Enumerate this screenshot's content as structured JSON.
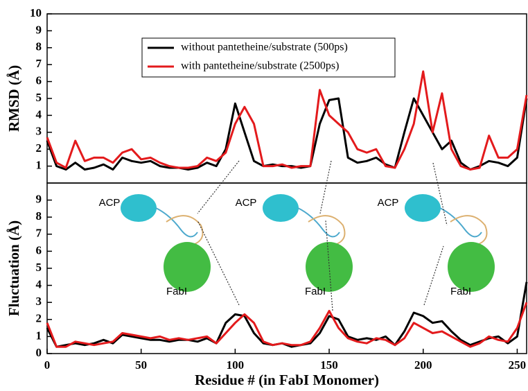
{
  "chart_data": [
    {
      "type": "line",
      "ylabel": "RMSD  (Å)",
      "legend": "upper center",
      "xlim": [
        0,
        255
      ],
      "ylim": [
        0,
        10
      ],
      "yticks": [
        1,
        2,
        3,
        4,
        5,
        6,
        7,
        8,
        9,
        10
      ],
      "x": [
        0,
        5,
        10,
        15,
        20,
        25,
        30,
        35,
        40,
        45,
        50,
        55,
        60,
        65,
        70,
        75,
        80,
        85,
        90,
        95,
        100,
        105,
        110,
        115,
        120,
        125,
        130,
        135,
        140,
        145,
        150,
        155,
        160,
        165,
        170,
        175,
        180,
        185,
        190,
        195,
        200,
        205,
        210,
        215,
        220,
        225,
        230,
        235,
        240,
        245,
        250,
        255
      ],
      "series": [
        {
          "name": "without pantetheine/substrate (500ps)",
          "color": "#000000",
          "values": [
            2.5,
            1.0,
            0.8,
            1.2,
            0.8,
            0.9,
            1.1,
            0.8,
            1.5,
            1.3,
            1.2,
            1.3,
            1.0,
            0.9,
            0.9,
            0.8,
            0.9,
            1.2,
            1.0,
            2.0,
            4.7,
            3.0,
            1.3,
            1.0,
            1.1,
            1.0,
            1.0,
            0.9,
            1.0,
            3.5,
            4.9,
            5.0,
            1.5,
            1.2,
            1.3,
            1.5,
            1.1,
            0.9,
            3.0,
            5.0,
            4.0,
            3.0,
            2.0,
            2.5,
            1.2,
            0.8,
            1.0,
            1.3,
            1.2,
            1.0,
            1.5,
            5.0
          ]
        },
        {
          "name": "with pantetheine/substrate (2500ps)",
          "color": "#e31a1c",
          "values": [
            2.7,
            1.2,
            0.9,
            2.5,
            1.3,
            1.5,
            1.5,
            1.2,
            1.8,
            2.0,
            1.4,
            1.5,
            1.2,
            1.0,
            0.9,
            0.9,
            1.0,
            1.5,
            1.3,
            1.8,
            3.5,
            4.5,
            3.5,
            1.0,
            1.0,
            1.1,
            0.9,
            1.0,
            1.0,
            5.5,
            4.0,
            3.5,
            3.0,
            2.0,
            1.8,
            2.0,
            1.0,
            0.9,
            2.0,
            3.5,
            6.6,
            3.0,
            5.3,
            2.0,
            1.0,
            0.8,
            0.9,
            2.8,
            1.5,
            1.5,
            2.0,
            5.2
          ]
        }
      ]
    },
    {
      "type": "line",
      "ylabel": "Fluctuation  (Å)",
      "xlabel": "Residue # (in FabI Monomer)",
      "xlim": [
        0,
        255
      ],
      "xticks": [
        0,
        50,
        100,
        150,
        200,
        250
      ],
      "ylim": [
        0,
        10
      ],
      "yticks": [
        0,
        1,
        2,
        3,
        4,
        5,
        6,
        7,
        8,
        9
      ],
      "annotations": [
        "ACP",
        "FabI",
        "ACP",
        "FabI",
        "ACP",
        "FabI"
      ],
      "x": [
        0,
        5,
        10,
        15,
        20,
        25,
        30,
        35,
        40,
        45,
        50,
        55,
        60,
        65,
        70,
        75,
        80,
        85,
        90,
        95,
        100,
        105,
        110,
        115,
        120,
        125,
        130,
        135,
        140,
        145,
        150,
        155,
        160,
        165,
        170,
        175,
        180,
        185,
        190,
        195,
        200,
        205,
        210,
        215,
        220,
        225,
        230,
        235,
        240,
        245,
        250,
        255
      ],
      "series": [
        {
          "color": "#000000",
          "values": [
            1.5,
            0.4,
            0.5,
            0.6,
            0.5,
            0.6,
            0.8,
            0.6,
            1.1,
            1.0,
            0.9,
            0.8,
            0.8,
            0.7,
            0.8,
            0.8,
            0.7,
            0.9,
            0.6,
            1.8,
            2.3,
            2.2,
            1.2,
            0.6,
            0.5,
            0.6,
            0.4,
            0.5,
            0.6,
            1.2,
            2.2,
            2.0,
            1.0,
            0.8,
            0.9,
            0.8,
            1.0,
            0.5,
            1.3,
            2.4,
            2.2,
            1.8,
            1.9,
            1.3,
            0.8,
            0.5,
            0.7,
            0.9,
            1.0,
            0.6,
            1.0,
            4.2
          ]
        },
        {
          "color": "#e31a1c",
          "values": [
            1.8,
            0.4,
            0.4,
            0.7,
            0.6,
            0.5,
            0.6,
            0.7,
            1.2,
            1.1,
            1.0,
            0.9,
            1.0,
            0.8,
            0.9,
            0.8,
            0.9,
            1.0,
            0.6,
            1.2,
            1.8,
            2.3,
            1.8,
            0.7,
            0.5,
            0.6,
            0.5,
            0.5,
            0.7,
            1.5,
            2.5,
            1.5,
            0.9,
            0.7,
            0.6,
            0.9,
            0.8,
            0.5,
            0.9,
            1.8,
            1.5,
            1.2,
            1.3,
            1.0,
            0.7,
            0.4,
            0.6,
            1.0,
            0.8,
            0.7,
            1.5,
            3.0
          ]
        }
      ]
    }
  ]
}
